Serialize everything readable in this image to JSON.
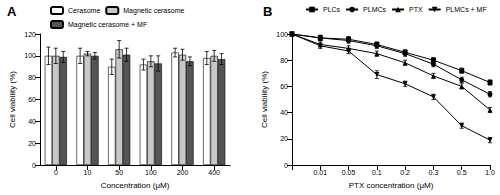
{
  "chart_data": [
    {
      "type": "bar",
      "title": "A",
      "x_label": "Concentration (μM)",
      "y_label": "Cell viability (%)",
      "categories": [
        "0",
        "10",
        "50",
        "100",
        "200",
        "400"
      ],
      "series": [
        {
          "name": "Cerasome",
          "color": "#ffffff",
          "values": [
            100,
            100,
            90,
            92,
            103,
            98
          ],
          "errors": [
            8,
            7,
            7,
            5,
            4,
            6
          ]
        },
        {
          "name": "Magnetic cerasome",
          "color": "#c8c8c8",
          "values": [
            100,
            102,
            106,
            95,
            101,
            100
          ],
          "errors": [
            7,
            2,
            8,
            5,
            5,
            5
          ]
        },
        {
          "name": "Magnetic cerasome + MF",
          "color": "#555555",
          "values": [
            99,
            100,
            101,
            93,
            95,
            97
          ],
          "errors": [
            5,
            3,
            6,
            7,
            4,
            5
          ]
        }
      ],
      "ylim": [
        0,
        120
      ],
      "yticks": [
        0,
        20,
        40,
        60,
        80,
        100,
        120
      ],
      "grid": false
    },
    {
      "type": "line",
      "title": "B",
      "x_label": "PTX concentration (μM)",
      "y_label": "Cell viability (%)",
      "categories": [
        null,
        "0.01",
        "0.05",
        "0.1",
        "0.2",
        "0.3",
        "0.5",
        "1.0"
      ],
      "series": [
        {
          "name": "PLCs",
          "color": "#000000",
          "marker": "square",
          "values": [
            100,
            97,
            96,
            92,
            86,
            80,
            72,
            63
          ],
          "errors": [
            0,
            2,
            2,
            2,
            2,
            2,
            2,
            2
          ]
        },
        {
          "name": "PLMCs",
          "color": "#000000",
          "marker": "circle",
          "values": [
            100,
            97,
            95,
            91,
            85,
            77,
            65,
            54
          ],
          "errors": [
            0,
            2,
            2,
            2,
            2,
            2,
            2,
            2
          ]
        },
        {
          "name": "PTX",
          "color": "#000000",
          "marker": "triangle-up",
          "values": [
            100,
            92,
            89,
            85,
            78,
            68,
            60,
            42
          ],
          "errors": [
            0,
            2,
            2,
            2,
            2,
            2,
            2,
            2
          ]
        },
        {
          "name": "PLMCs + MF",
          "color": "#000000",
          "marker": "triangle-down",
          "values": [
            100,
            91,
            87,
            69,
            62,
            52,
            30,
            19
          ],
          "errors": [
            0,
            2,
            2,
            3,
            2,
            2,
            2,
            2
          ]
        }
      ],
      "ylim": [
        0,
        100
      ],
      "yticks": [
        0,
        20,
        40,
        60,
        80,
        100
      ],
      "grid": false
    }
  ]
}
